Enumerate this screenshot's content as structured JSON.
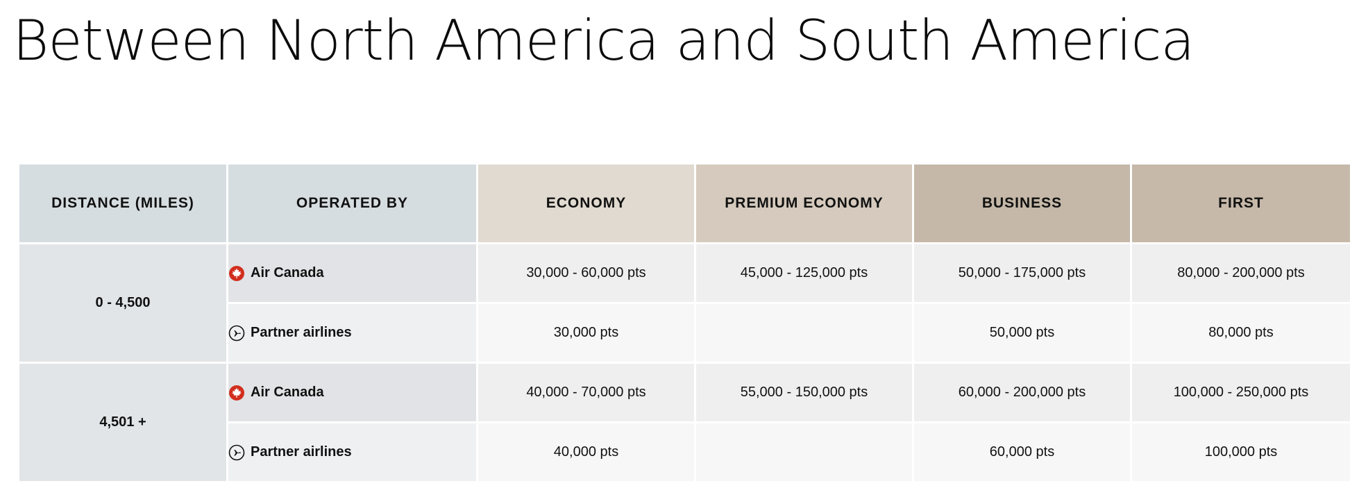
{
  "title": "Between North America and South America",
  "headers": {
    "distance": "DISTANCE (MILES)",
    "operated_by": "OPERATED BY",
    "economy": "ECONOMY",
    "premium_economy": "PREMIUM ECONOMY",
    "business": "BUSINESS",
    "first": "FIRST"
  },
  "rows": [
    {
      "distance": "0 - 4,500",
      "air_canada": {
        "label": "Air Canada",
        "icon": "maple-leaf-icon",
        "economy": "30,000 - 60,000 pts",
        "premium_economy": "45,000 - 125,000 pts",
        "business": "50,000 - 175,000 pts",
        "first": "80,000 - 200,000 pts"
      },
      "partner": {
        "label": "Partner airlines",
        "icon": "airplane-icon",
        "economy": "30,000 pts",
        "premium_economy": "",
        "business": "50,000 pts",
        "first": "80,000 pts"
      }
    },
    {
      "distance": "4,501 +",
      "air_canada": {
        "label": "Air Canada",
        "icon": "maple-leaf-icon",
        "economy": "40,000 - 70,000 pts",
        "premium_economy": "55,000 - 150,000 pts",
        "business": "60,000 - 200,000 pts",
        "first": "100,000 - 250,000 pts"
      },
      "partner": {
        "label": "Partner airlines",
        "icon": "airplane-icon",
        "economy": "40,000 pts",
        "premium_economy": "",
        "business": "60,000 pts",
        "first": "100,000 pts"
      }
    }
  ],
  "colors": {
    "maple_leaf": "#d22e1e",
    "header_blue": "#d6dde1",
    "header_economy": "#e1dad0",
    "header_premium": "#d5cabd",
    "header_business": "#c5b8a8",
    "header_first": "#c6b9a9"
  }
}
